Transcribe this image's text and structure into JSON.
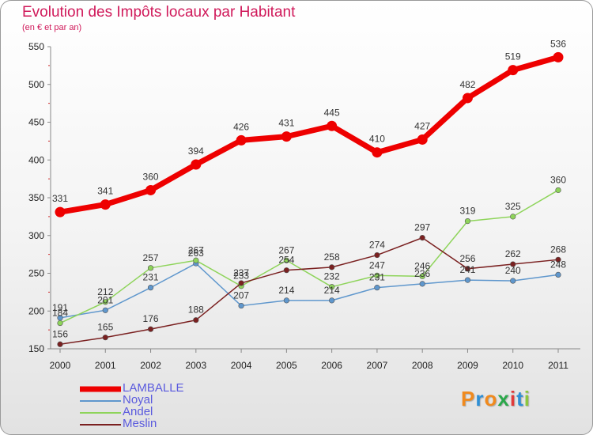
{
  "title": "Evolution des Impôts locaux par Habitant",
  "subtitle": "(en € et par an)",
  "brand": {
    "letters": [
      "P",
      "r",
      "o",
      "x",
      "i",
      "t",
      "i"
    ],
    "colors": [
      "#f08a1e",
      "#2e8fd6",
      "#f08a1e",
      "#2aa84a",
      "#e03a3a",
      "#2e8fd6",
      "#8cc63f"
    ]
  },
  "chart_data": {
    "type": "line",
    "x": [
      "2000",
      "2001",
      "2002",
      "2003",
      "2004",
      "2005",
      "2006",
      "2007",
      "2008",
      "2009",
      "2010",
      "2011"
    ],
    "ylim": [
      150,
      550
    ],
    "yticks": [
      150,
      200,
      250,
      300,
      350,
      400,
      450,
      500,
      550
    ],
    "grid": false,
    "legend_position": "bottom-left",
    "series": [
      {
        "name": "Noyal",
        "color": "#5f97cd",
        "values": [
          191,
          201,
          231,
          263,
          207,
          214,
          214,
          231,
          236,
          241,
          240,
          248
        ]
      },
      {
        "name": "Andel",
        "color": "#8ed45a",
        "values": [
          184,
          212,
          257,
          267,
          233,
          267,
          232,
          247,
          246,
          319,
          325,
          360
        ]
      },
      {
        "name": "Meslin",
        "color": "#7a2020",
        "values": [
          156,
          165,
          176,
          188,
          237,
          254,
          258,
          274,
          297,
          256,
          262,
          268
        ]
      },
      {
        "name": "LAMBALLE",
        "color": "#ee0000",
        "values": [
          331,
          341,
          360,
          394,
          426,
          431,
          445,
          410,
          427,
          482,
          519,
          536
        ]
      }
    ],
    "legend_order": [
      "LAMBALLE",
      "Noyal",
      "Andel",
      "Meslin"
    ]
  }
}
